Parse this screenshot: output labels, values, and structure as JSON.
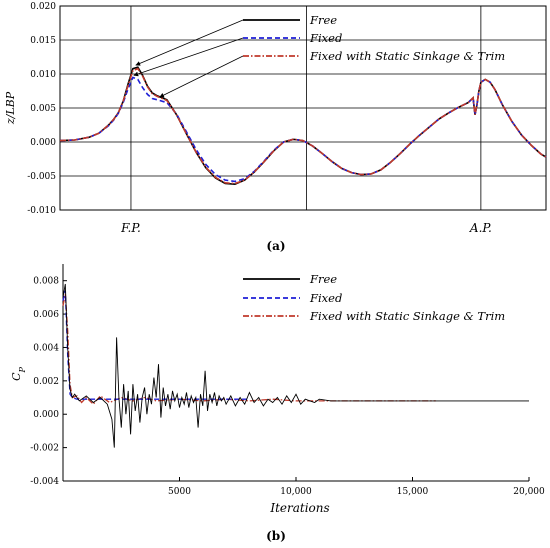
{
  "chart_data": [
    {
      "type": "line",
      "panel_label": "(a)",
      "ylabel": "z/LBP",
      "xlabel": "",
      "xlim": [
        0,
        100
      ],
      "ylim": [
        -0.01,
        0.02
      ],
      "yticks": [
        "0.020",
        "0.015",
        "0.010",
        "0.005",
        "0.000",
        "-0.005",
        "-0.010"
      ],
      "ytick_values": [
        0.02,
        0.015,
        0.01,
        0.005,
        0.0,
        -0.005,
        -0.01
      ],
      "xtick_labels": [
        {
          "label": "F.P.",
          "x": 14.6
        },
        {
          "label": "A.P.",
          "x": 86.6
        }
      ],
      "vertical_gridlines_at": [
        14.6,
        50.7,
        86.6
      ],
      "grid": true,
      "legend_position": "top-right",
      "series": [
        {
          "name": "Free",
          "color": "#000000",
          "style": "solid",
          "x": [
            0,
            3,
            6,
            8,
            10,
            11,
            12,
            13,
            14,
            15,
            16,
            17,
            18,
            19,
            20,
            22,
            24,
            26,
            28,
            30,
            32,
            34,
            36,
            38,
            40,
            42,
            44,
            46,
            48,
            50,
            52,
            54,
            56,
            58,
            60,
            62,
            64,
            66,
            68,
            70,
            72,
            74,
            76,
            78,
            80,
            82,
            84,
            85,
            85.4,
            85.8,
            86.2,
            86.6,
            87.5,
            88.5,
            89.5,
            91,
            93,
            95,
            97,
            99,
            100
          ],
          "y": [
            0.0002,
            0.0003,
            0.0007,
            0.0013,
            0.0025,
            0.0033,
            0.0043,
            0.006,
            0.0085,
            0.0108,
            0.011,
            0.0098,
            0.0082,
            0.0072,
            0.0068,
            0.0062,
            0.004,
            0.0012,
            -0.0015,
            -0.0038,
            -0.0053,
            -0.0061,
            -0.0062,
            -0.0056,
            -0.0044,
            -0.0029,
            -0.0013,
            0.0,
            0.0004,
            0.0002,
            -0.0006,
            -0.0017,
            -0.0029,
            -0.0039,
            -0.0045,
            -0.0048,
            -0.0047,
            -0.0041,
            -0.003,
            -0.0017,
            -0.0003,
            0.001,
            0.0022,
            0.0034,
            0.0043,
            0.0051,
            0.0058,
            0.0065,
            0.004,
            0.0055,
            0.0075,
            0.0088,
            0.0092,
            0.0088,
            0.0077,
            0.0055,
            0.003,
            0.001,
            -0.0005,
            -0.0018,
            -0.0022
          ]
        },
        {
          "name": "Fixed",
          "color": "#1f1fd6",
          "style": "dashed",
          "x": [
            0,
            3,
            6,
            8,
            10,
            11,
            12,
            13,
            14,
            15,
            16,
            17,
            18,
            19,
            20,
            22,
            24,
            26,
            28,
            30,
            32,
            34,
            36,
            38,
            40,
            42,
            44,
            46,
            48,
            50,
            52,
            54,
            56,
            58,
            60,
            62,
            64,
            66,
            68,
            70,
            72,
            74,
            76,
            78,
            80,
            82,
            84,
            85,
            85.4,
            85.8,
            86.2,
            86.6,
            87.5,
            88.5,
            89.5,
            91,
            93,
            95,
            97,
            99,
            100
          ],
          "y": [
            0.0002,
            0.0003,
            0.0007,
            0.0013,
            0.0024,
            0.0032,
            0.0042,
            0.0058,
            0.0078,
            0.0095,
            0.0092,
            0.008,
            0.007,
            0.0064,
            0.0062,
            0.0058,
            0.0041,
            0.0015,
            -0.0011,
            -0.0033,
            -0.0048,
            -0.0056,
            -0.0058,
            -0.0054,
            -0.0043,
            -0.0028,
            -0.0012,
            0.0,
            0.0004,
            0.0002,
            -0.0006,
            -0.0017,
            -0.0029,
            -0.0039,
            -0.0045,
            -0.0048,
            -0.0047,
            -0.0041,
            -0.003,
            -0.0017,
            -0.0003,
            0.001,
            0.0022,
            0.0034,
            0.0043,
            0.0051,
            0.0058,
            0.0065,
            0.004,
            0.0055,
            0.0075,
            0.0088,
            0.0092,
            0.0088,
            0.0077,
            0.0055,
            0.003,
            0.001,
            -0.0005,
            -0.0018,
            -0.0022
          ]
        },
        {
          "name": "Fixed with Static Sinkage & Trim",
          "color": "#c0392b",
          "style": "dashdot",
          "x": [
            0,
            3,
            6,
            8,
            10,
            11,
            12,
            13,
            14,
            15,
            16,
            17,
            18,
            19,
            20,
            22,
            24,
            26,
            28,
            30,
            32,
            34,
            36,
            38,
            40,
            42,
            44,
            46,
            48,
            50,
            52,
            54,
            56,
            58,
            60,
            62,
            64,
            66,
            68,
            70,
            72,
            74,
            76,
            78,
            80,
            82,
            84,
            85,
            85.4,
            85.8,
            86.2,
            86.6,
            87.5,
            88.5,
            89.5,
            91,
            93,
            95,
            97,
            99,
            100
          ],
          "y": [
            0.0002,
            0.0003,
            0.0007,
            0.0013,
            0.0025,
            0.0033,
            0.0043,
            0.006,
            0.0083,
            0.0105,
            0.0108,
            0.0097,
            0.0081,
            0.0071,
            0.0067,
            0.0061,
            0.004,
            0.0012,
            -0.0015,
            -0.0037,
            -0.0052,
            -0.006,
            -0.0061,
            -0.0056,
            -0.0044,
            -0.0029,
            -0.0013,
            0.0,
            0.0004,
            0.0002,
            -0.0006,
            -0.0017,
            -0.0029,
            -0.0039,
            -0.0045,
            -0.0048,
            -0.0047,
            -0.0041,
            -0.003,
            -0.0017,
            -0.0003,
            0.001,
            0.0022,
            0.0034,
            0.0043,
            0.0051,
            0.0058,
            0.0065,
            0.004,
            0.0055,
            0.0075,
            0.0088,
            0.0092,
            0.0088,
            0.0077,
            0.0055,
            0.003,
            0.001,
            -0.0005,
            -0.0018,
            -0.0022
          ]
        }
      ],
      "annotations": "arrows from legend entries to the bow crest near F.P."
    },
    {
      "type": "line",
      "panel_label": "(b)",
      "ylabel": "C_P",
      "xlabel": "Iterations",
      "xlim": [
        0,
        20000
      ],
      "ylim": [
        -0.004,
        0.009
      ],
      "yticks": [
        "0.008",
        "0.006",
        "0.004",
        "0.002",
        "0.000",
        "-0.002",
        "-0.004"
      ],
      "ytick_values": [
        0.008,
        0.006,
        0.004,
        0.002,
        0.0,
        -0.002,
        -0.004
      ],
      "xticks": [
        "5000",
        "10,000",
        "15,000",
        "20,000"
      ],
      "xtick_values": [
        5000,
        10000,
        15000,
        20000
      ],
      "grid": false,
      "legend_position": "top-right",
      "series": [
        {
          "name": "Free",
          "color": "#000000",
          "style": "solid",
          "x": [
            0,
            100,
            200,
            300,
            400,
            500,
            700,
            1000,
            1300,
            1600,
            1900,
            2100,
            2200,
            2300,
            2400,
            2500,
            2600,
            2700,
            2800,
            2900,
            3000,
            3100,
            3200,
            3300,
            3400,
            3500,
            3600,
            3700,
            3800,
            3900,
            4000,
            4100,
            4200,
            4300,
            4400,
            4500,
            4600,
            4700,
            4800,
            4900,
            5000,
            5100,
            5200,
            5300,
            5400,
            5500,
            5600,
            5700,
            5800,
            5900,
            6000,
            6100,
            6200,
            6300,
            6400,
            6500,
            6600,
            6700,
            6800,
            6900,
            7000,
            7200,
            7400,
            7600,
            7800,
            8000,
            8200,
            8400,
            8600,
            8800,
            9000,
            9200,
            9400,
            9600,
            9800,
            10000,
            10200,
            10400,
            10600,
            10800,
            11000,
            11500,
            12000,
            13000,
            14000,
            15000,
            16000,
            17000,
            18000,
            19000,
            20000
          ],
          "y": [
            0.007,
            0.0078,
            0.004,
            0.0015,
            0.001,
            0.0012,
            0.0008,
            0.0011,
            0.0007,
            0.001,
            0.0006,
            -0.0003,
            -0.002,
            0.0046,
            0.001,
            -0.0008,
            0.0018,
            0.0,
            0.0014,
            -0.0012,
            0.0018,
            0.0002,
            0.0012,
            -0.0005,
            0.001,
            0.0016,
            0.0,
            0.0012,
            0.0006,
            0.0022,
            0.001,
            0.003,
            -0.0002,
            0.0016,
            0.0005,
            0.0012,
            0.0003,
            0.0014,
            0.0008,
            0.0012,
            0.0004,
            0.001,
            0.0006,
            0.0013,
            0.0004,
            0.0011,
            0.0007,
            0.001,
            -0.0008,
            0.0012,
            0.0005,
            0.0026,
            0.0002,
            0.0012,
            0.0007,
            0.0013,
            0.0005,
            0.0011,
            0.0008,
            0.001,
            0.0006,
            0.0011,
            0.0005,
            0.001,
            0.0006,
            0.0013,
            0.0007,
            0.001,
            0.0005,
            0.0009,
            0.0007,
            0.001,
            0.0006,
            0.0011,
            0.0007,
            0.0012,
            0.0006,
            0.0009,
            0.0008,
            0.0007,
            0.0009,
            0.0008,
            0.0008,
            0.0008,
            0.0008,
            0.0008,
            0.0008,
            0.0008,
            0.0008,
            0.0008,
            0.0008
          ]
        },
        {
          "name": "Fixed",
          "color": "#1f1fd6",
          "style": "dashed",
          "x": [
            0,
            100,
            200,
            300,
            400,
            600,
            1000,
            1500,
            2000,
            3000,
            4000,
            5000,
            6000,
            7000,
            8000
          ],
          "y": [
            0.0068,
            0.0074,
            0.0035,
            0.0012,
            0.001,
            0.0009,
            0.0009,
            0.0009,
            0.0009,
            0.0009,
            0.0009,
            0.0009,
            0.0009,
            0.0009,
            0.0009
          ]
        },
        {
          "name": "Fixed with Static Sinkage & Trim",
          "color": "#c0392b",
          "style": "dashdot",
          "x": [
            0,
            100,
            200,
            300,
            400,
            600,
            800,
            1000,
            1300,
            1600,
            2000,
            2500,
            3000,
            3500,
            4000,
            5000,
            6000,
            7000,
            8000,
            9000,
            10000,
            12000,
            14000,
            16000
          ],
          "y": [
            0.0065,
            0.0072,
            0.005,
            0.0018,
            0.001,
            0.0011,
            0.0007,
            0.001,
            0.0006,
            0.0011,
            0.0007,
            0.001,
            0.0008,
            0.001,
            0.0008,
            0.0009,
            0.0008,
            0.0009,
            0.0008,
            0.0009,
            0.0008,
            0.0008,
            0.0008,
            0.0008
          ]
        }
      ]
    }
  ]
}
